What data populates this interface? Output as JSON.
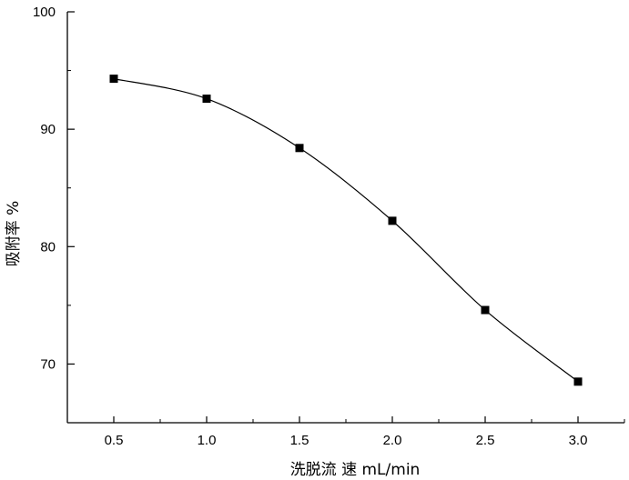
{
  "chart_data": {
    "type": "line",
    "xlabel": "洗脱流 速 mL/min",
    "ylabel": "吸附率 %",
    "xlim": [
      0.25,
      3.25
    ],
    "ylim": [
      65,
      100
    ],
    "x_ticks": [
      0.5,
      1.0,
      1.5,
      2.0,
      2.5,
      3.0
    ],
    "x_tick_labels": [
      "0.5",
      "1.0",
      "1.5",
      "2.0",
      "2.5",
      "3.0"
    ],
    "y_ticks": [
      70,
      80,
      90,
      100
    ],
    "y_tick_labels": [
      "70",
      "80",
      "90",
      "100"
    ],
    "grid": false,
    "marker": "square",
    "line_style": "smooth",
    "series": [
      {
        "x": [
          0.5,
          1.0,
          1.5,
          2.0,
          2.5,
          3.0
        ],
        "y": [
          94.3,
          92.6,
          88.4,
          82.2,
          74.6,
          68.5
        ]
      }
    ],
    "colors": {
      "line": "#000000",
      "marker": "#000000"
    }
  }
}
